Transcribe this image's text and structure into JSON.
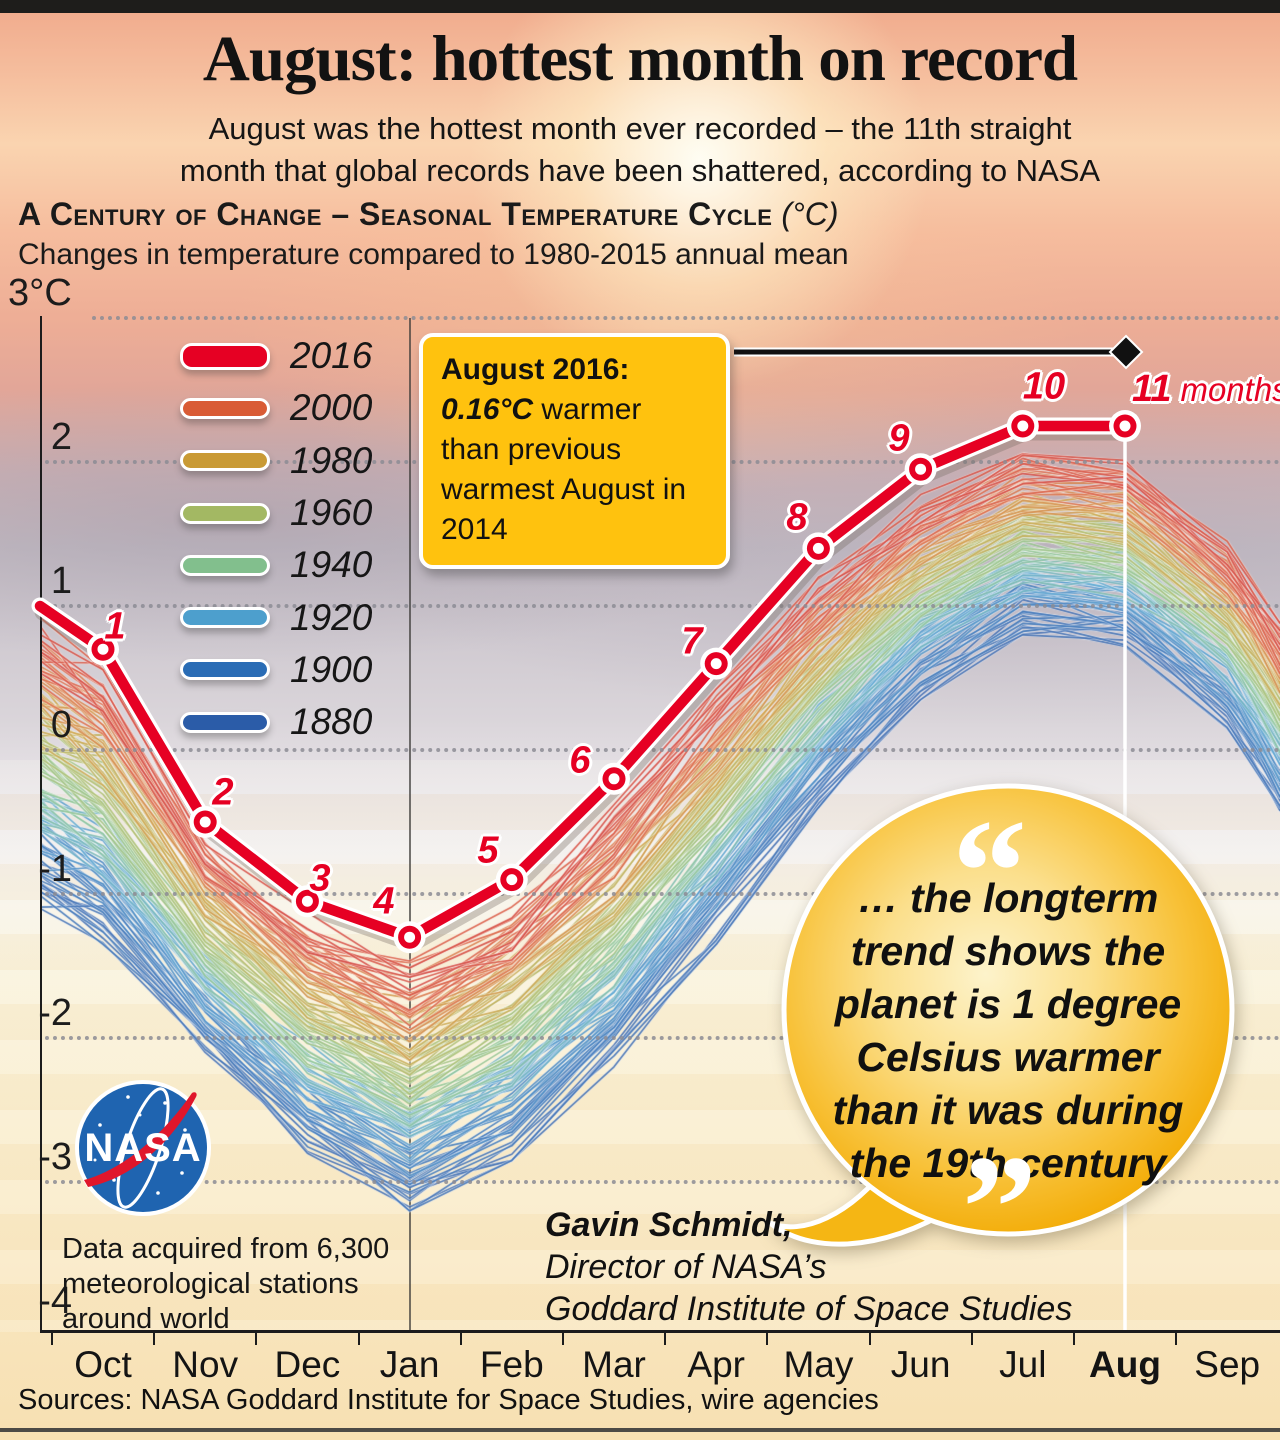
{
  "header": {
    "title": "August: hottest month on record",
    "subtitle_lines": [
      "August was the hottest month ever recorded – the 11th straight",
      "month that global records have been shattered, according to NASA"
    ],
    "section_title": "A Century of Change – Seasonal Temperature Cycle",
    "section_unit": "(°C)",
    "section_subtitle": "Changes in temperature compared to 1980-2015 annual mean"
  },
  "chart_data": {
    "type": "line",
    "title": "A Century of Change – Seasonal Temperature Cycle (°C)",
    "ylabel": "Temperature change vs 1980-2015 annual mean (°C)",
    "ylim": [
      -4,
      3
    ],
    "ytick_labels": [
      "3°C",
      "2",
      "1",
      "0",
      "-1",
      "-2",
      "-3",
      "-4"
    ],
    "ytick_values": [
      3,
      2,
      1,
      0,
      -1,
      -2,
      -3,
      -4
    ],
    "gridline_values": [
      3,
      2,
      1,
      0,
      -1,
      -2,
      -3
    ],
    "x_categories": [
      "Oct",
      "Nov",
      "Dec",
      "Jan",
      "Feb",
      "Mar",
      "Apr",
      "May",
      "Jun",
      "Jul",
      "Aug",
      "Sep"
    ],
    "bold_month": "Aug",
    "series_2016": {
      "name": "2016",
      "color": "#e60023",
      "edge_start_value": 1.0,
      "months": [
        "Oct",
        "Nov",
        "Dec",
        "Jan",
        "Feb",
        "Mar",
        "Apr",
        "May",
        "Jun",
        "Jul",
        "Aug"
      ],
      "values": [
        0.7,
        -0.5,
        -1.05,
        -1.3,
        -0.9,
        -0.2,
        0.6,
        1.4,
        1.95,
        2.25,
        2.25
      ],
      "point_labels": [
        "1",
        "2",
        "3",
        "4",
        "5",
        "6",
        "7",
        "8",
        "9",
        "10",
        "11"
      ],
      "months_word": "months"
    },
    "background_series": {
      "description": "Seasonal cycle curves for each year 1880-2015, colored by decade",
      "year_start": 1880,
      "year_end": 2015,
      "node_positions": [
        "edgeL",
        "Oct",
        "Nov",
        "Dec",
        "Jan",
        "Feb",
        "Mar",
        "Apr",
        "May",
        "Jun",
        "Jul",
        "Aug",
        "Sep",
        "edgeR"
      ],
      "envelope_top": [
        0.92,
        0.62,
        -0.55,
        -1.12,
        -1.45,
        -1.05,
        -0.38,
        0.45,
        1.2,
        1.78,
        2.1,
        2.03,
        1.45,
        0.88
      ],
      "envelope_bottom": [
        -1.1,
        -1.35,
        -2.1,
        -2.8,
        -3.2,
        -2.85,
        -2.2,
        -1.35,
        -0.4,
        0.35,
        0.8,
        0.72,
        0.15,
        -0.42
      ],
      "decade_colors": [
        {
          "year": 1880,
          "color": "#2b5ca8"
        },
        {
          "year": 1900,
          "color": "#2a6cb5"
        },
        {
          "year": 1920,
          "color": "#4d9fcd"
        },
        {
          "year": 1940,
          "color": "#82bf8d"
        },
        {
          "year": 1960,
          "color": "#a3b863"
        },
        {
          "year": 1980,
          "color": "#c99a35"
        },
        {
          "year": 2000,
          "color": "#d95b35"
        },
        {
          "year": 2015,
          "color": "#d0342c"
        }
      ]
    }
  },
  "legend": {
    "items": [
      {
        "label": "2016",
        "color": "#e60023"
      },
      {
        "label": "2000",
        "color": "#d95b35"
      },
      {
        "label": "1980",
        "color": "#c99a35"
      },
      {
        "label": "1960",
        "color": "#a3b863"
      },
      {
        "label": "1940",
        "color": "#82bf8d"
      },
      {
        "label": "1920",
        "color": "#4d9fcd"
      },
      {
        "label": "1900",
        "color": "#2a6cb5"
      },
      {
        "label": "1880",
        "color": "#2b5ca8"
      }
    ]
  },
  "callout": {
    "line1": "August 2016:",
    "value": "0.16°C",
    "rest": " warmer than previous warmest August in 2014",
    "bg_color": "#ffc20e"
  },
  "quote": {
    "lines": [
      "… the longterm",
      "trend shows the",
      "planet is 1 degree",
      "Celsius warmer",
      "than it was during",
      "the 19th century"
    ],
    "open_mark": "“",
    "close_mark": "”"
  },
  "attribution": {
    "lines": [
      "Gavin Schmidt,",
      "Director of NASA’s",
      "Goddard Institute of Space Studies"
    ]
  },
  "nasa": {
    "logo_text": "NASA",
    "note": "Data acquired from 6,300 meteorological stations around world"
  },
  "footer": {
    "sources": "Sources: NASA Goddard Institute for Space Studies, wire agencies"
  }
}
